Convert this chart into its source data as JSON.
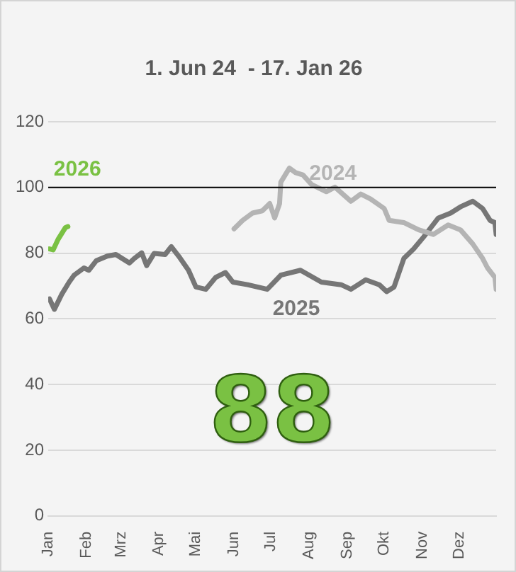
{
  "chart_data": {
    "type": "line",
    "subtitle": "1. Jun 24  - 17. Jan 26",
    "annotations": [
      "88"
    ],
    "xlim": [
      "--01-01",
      "--12-31"
    ],
    "xticks": [
      {
        "value": "--01-01",
        "label": "Jan"
      },
      {
        "value": "--02-01",
        "label": "Feb"
      },
      {
        "value": "--03-01",
        "label": "Mrz"
      },
      {
        "value": "--04-01",
        "label": "Apr"
      },
      {
        "value": "--05-01",
        "label": "Mai"
      },
      {
        "value": "--06-01",
        "label": "Jun"
      },
      {
        "value": "--07-01",
        "label": "Jul"
      },
      {
        "value": "--08-01",
        "label": "Aug"
      },
      {
        "value": "--09-01",
        "label": "Sep"
      },
      {
        "value": "--10-01",
        "label": "Okt"
      },
      {
        "value": "--11-01",
        "label": "Nov"
      },
      {
        "value": "--12-01",
        "label": "Dez"
      }
    ],
    "ylim": [
      0,
      120
    ],
    "yticks": [
      0,
      20,
      40,
      60,
      80,
      100,
      120
    ],
    "grid": "y",
    "legend": false,
    "marker": "none",
    "line_style": "solid",
    "ref_lines": [
      {
        "axis": "y",
        "value": 100,
        "color": "#000000"
      }
    ],
    "series": [
      {
        "name": "2024",
        "color": "#b4b4b4",
        "x": [
          "--06-01",
          "--06-08",
          "--06-16",
          "--06-24",
          "--06-30",
          "--07-04",
          "--07-08",
          "--07-09",
          "--07-16",
          "--07-21",
          "--07-27",
          "--08-03",
          "--08-15",
          "--08-22",
          "--09-04",
          "--09-12",
          "--09-20",
          "--10-01",
          "--10-05",
          "--10-17",
          "--10-29",
          "--11-10",
          "--11-22",
          "--12-02",
          "--12-12",
          "--12-20",
          "--12-24",
          "--12-30",
          "--12-31"
        ],
        "values": [
          87.4,
          90,
          92.2,
          92.9,
          95.1,
          90.7,
          95.1,
          101.6,
          105.9,
          104.5,
          103.8,
          100.9,
          98.7,
          100.1,
          95.8,
          98,
          96.5,
          93.6,
          90,
          89.3,
          87.1,
          85.7,
          88.6,
          87.1,
          82.8,
          78.4,
          75.5,
          72.6,
          69
        ]
      },
      {
        "name": "2025",
        "color": "#767676",
        "x": [
          "--01-02",
          "--01-06",
          "--01-12",
          "--01-18",
          "--01-22",
          "--01-30",
          "--02-03",
          "--02-09",
          "--02-18",
          "--02-25",
          "--03-02",
          "--03-08",
          "--03-12",
          "--03-18",
          "--03-22",
          "--03-28",
          "--04-06",
          "--04-11",
          "--04-17",
          "--04-25",
          "--05-01",
          "--05-09",
          "--05-17",
          "--05-25",
          "--05-31",
          "--06-12",
          "--06-28",
          "--07-09",
          "--07-25",
          "--08-11",
          "--08-27",
          "--09-04",
          "--09-16",
          "--09-27",
          "--10-03",
          "--10-09",
          "--10-17",
          "--10-25",
          "--11-02",
          "--11-14",
          "--11-24",
          "--12-02",
          "--12-12",
          "--12-20",
          "--12-26",
          "--12-30",
          "--12-31"
        ],
        "values": [
          66.1,
          62.9,
          67.5,
          71.2,
          73.3,
          75.5,
          74.8,
          77.7,
          79.1,
          79.6,
          78.4,
          77,
          78.4,
          80.1,
          76.2,
          79.9,
          79.6,
          82,
          79.1,
          74.8,
          69.7,
          69,
          72.6,
          74.1,
          71.2,
          70.4,
          69,
          73.3,
          74.8,
          71.2,
          70.4,
          69,
          71.9,
          70.4,
          68.3,
          69.7,
          78.4,
          81.3,
          84.9,
          90.7,
          92.2,
          94.1,
          95.8,
          93.6,
          90,
          89.3,
          85.7
        ]
      },
      {
        "name": "2026",
        "color": "#7ac143",
        "x": [
          "--01-02",
          "--01-05",
          "--01-09",
          "--01-15",
          "--01-17"
        ],
        "values": [
          81.3,
          81,
          84.2,
          87.8,
          88.1
        ]
      }
    ]
  }
}
